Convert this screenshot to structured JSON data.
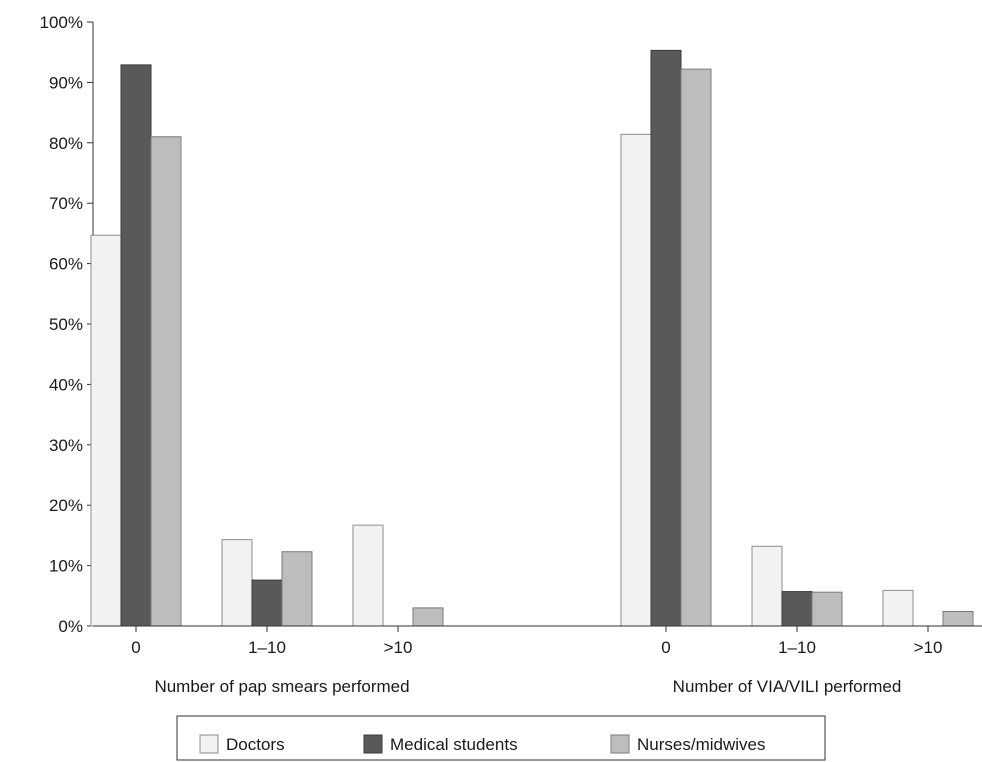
{
  "chart_data": {
    "type": "bar",
    "title": "",
    "ylabel": "",
    "ylim": [
      0,
      100
    ],
    "yticks": [
      "0%",
      "10%",
      "20%",
      "30%",
      "40%",
      "50%",
      "60%",
      "70%",
      "80%",
      "90%",
      "100%"
    ],
    "grid": false,
    "legend_position": "bottom",
    "groups": [
      {
        "xlabel": "Number of pap smears performed",
        "categories": [
          "0",
          "1–10",
          ">10"
        ],
        "series": [
          {
            "name": "Doctors",
            "values": [
              64.7,
              14.3,
              16.7
            ]
          },
          {
            "name": "Medical students",
            "values": [
              92.9,
              7.6,
              0
            ]
          },
          {
            "name": "Nurses/midwives",
            "values": [
              81.0,
              12.3,
              3.0
            ]
          }
        ]
      },
      {
        "xlabel": "Number of VIA/VILI performed",
        "categories": [
          "0",
          "1–10",
          ">10"
        ],
        "series": [
          {
            "name": "Doctors",
            "values": [
              81.4,
              13.2,
              5.9
            ]
          },
          {
            "name": "Medical students",
            "values": [
              95.3,
              5.7,
              0
            ]
          },
          {
            "name": "Nurses/midwives",
            "values": [
              92.2,
              5.6,
              2.4
            ]
          }
        ]
      }
    ],
    "legend": [
      {
        "name": "Doctors",
        "color": "#f2f2f2"
      },
      {
        "name": "Medical students",
        "color": "#595959"
      },
      {
        "name": "Nurses/midwives",
        "color": "#bdbdbd"
      }
    ]
  }
}
